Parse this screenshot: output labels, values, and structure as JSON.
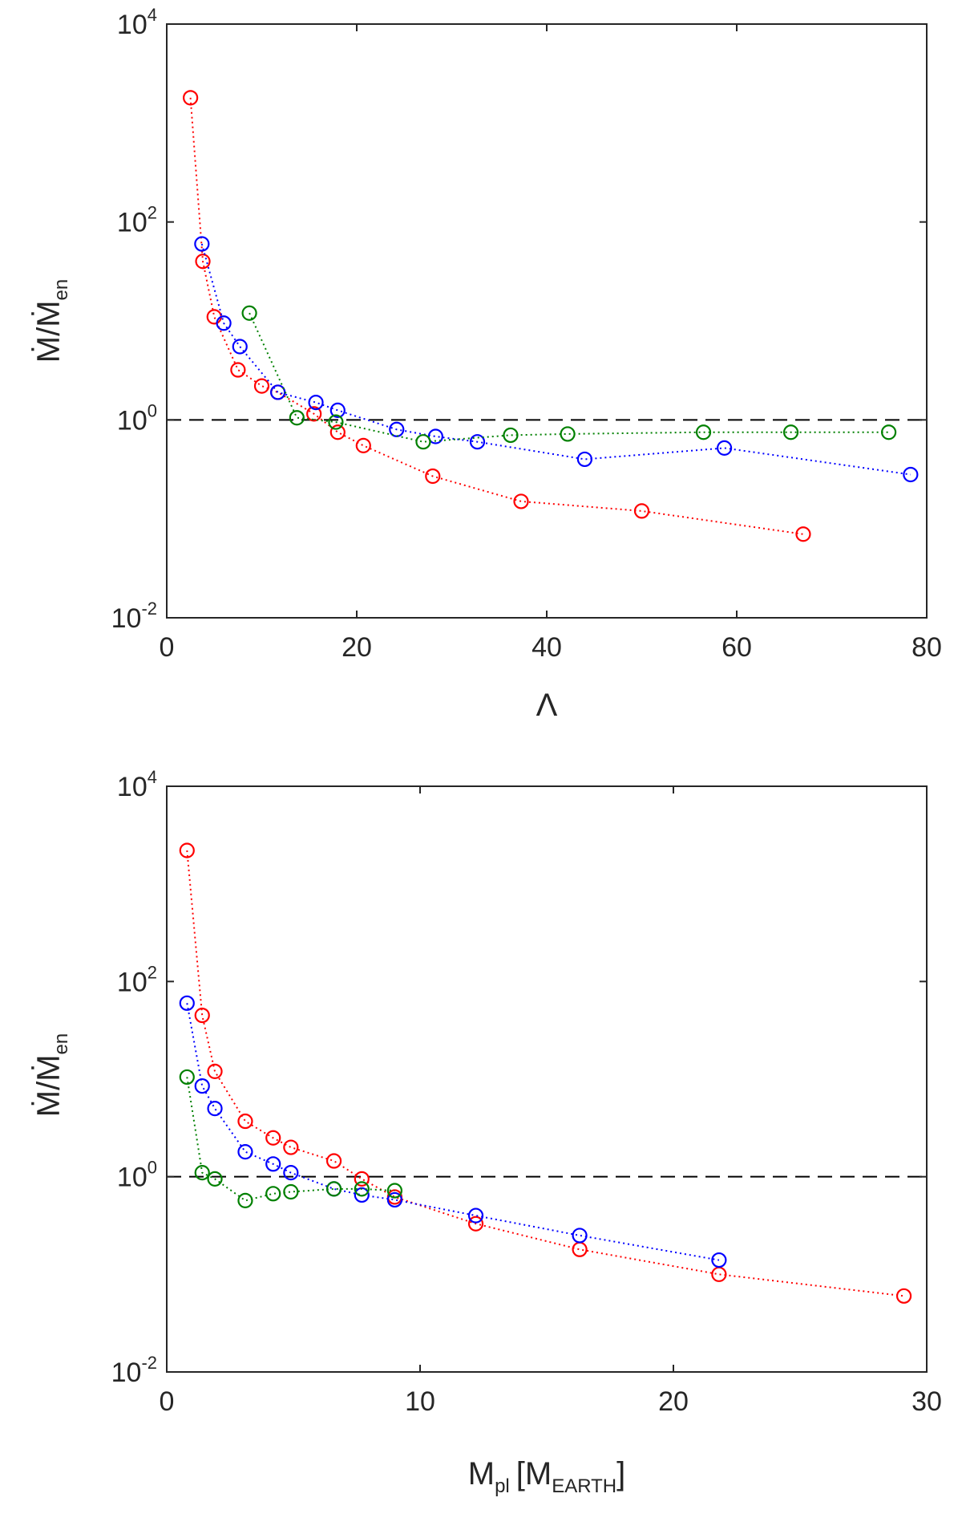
{
  "chart_data": [
    {
      "type": "scatter",
      "xlabel": "Λ",
      "ylabel": "Ṁ/Ṁen",
      "ylabel_main": "Ṁ/Ṁ",
      "ylabel_sub": "en",
      "xlim": [
        0,
        80
      ],
      "ylim": [
        0.01,
        10000
      ],
      "yscale": "log",
      "grid": false,
      "legend": "none",
      "xticks": [
        0,
        20,
        40,
        60,
        80
      ],
      "xtick_labels": [
        "0",
        "20",
        "40",
        "60",
        "80"
      ],
      "yticks": [
        0.01,
        1,
        100,
        10000
      ],
      "ytick_labels": [
        {
          "base": "10",
          "exp": "-2"
        },
        {
          "base": "10",
          "exp": "0"
        },
        {
          "base": "10",
          "exp": "2"
        },
        {
          "base": "10",
          "exp": "4"
        }
      ],
      "reference_line": {
        "y": 1,
        "style": "dashed"
      },
      "series": [
        {
          "name": "red",
          "color": "#ff0000",
          "x": [
            2.5,
            3.8,
            5.0,
            7.5,
            10.0,
            11.7,
            15.5,
            18.0,
            20.7,
            28.0,
            37.3,
            50.0,
            67.0
          ],
          "y": [
            1800,
            40,
            11,
            3.2,
            2.2,
            1.9,
            1.15,
            0.75,
            0.55,
            0.27,
            0.15,
            0.12,
            0.07
          ]
        },
        {
          "name": "blue",
          "color": "#0000ff",
          "x": [
            3.7,
            6.0,
            7.7,
            11.7,
            15.7,
            18.0,
            24.2,
            28.3,
            32.7,
            44.0,
            58.7,
            78.3
          ],
          "y": [
            60,
            9.5,
            5.5,
            1.9,
            1.5,
            1.25,
            0.8,
            0.68,
            0.6,
            0.4,
            0.52,
            0.28
          ]
        },
        {
          "name": "green",
          "color": "#008000",
          "x": [
            8.7,
            13.7,
            17.8,
            27.0,
            36.2,
            42.2,
            56.5,
            65.7,
            76.0
          ],
          "y": [
            12,
            1.05,
            0.95,
            0.6,
            0.7,
            0.72,
            0.75,
            0.75,
            0.75
          ]
        }
      ]
    },
    {
      "type": "scatter",
      "xlabel": "Mpl [MEARTH]",
      "xlabel_main": "M",
      "xlabel_sub": "pl",
      "xlabel_mid": "[M",
      "xlabel_sub2": "EARTH",
      "xlabel_end": "]",
      "ylabel": "Ṁ/Ṁen",
      "ylabel_main": "Ṁ/Ṁ",
      "ylabel_sub": "en",
      "xlim": [
        0,
        30
      ],
      "ylim": [
        0.01,
        10000
      ],
      "yscale": "log",
      "grid": false,
      "legend": "none",
      "xticks": [
        0,
        10,
        20,
        30
      ],
      "xtick_labels": [
        "0",
        "10",
        "20",
        "30"
      ],
      "yticks": [
        0.01,
        1,
        100,
        10000
      ],
      "ytick_labels": [
        {
          "base": "10",
          "exp": "-2"
        },
        {
          "base": "10",
          "exp": "0"
        },
        {
          "base": "10",
          "exp": "2"
        },
        {
          "base": "10",
          "exp": "4"
        }
      ],
      "reference_line": {
        "y": 1,
        "style": "dashed"
      },
      "series": [
        {
          "name": "red",
          "color": "#ff0000",
          "x": [
            0.8,
            1.4,
            1.9,
            3.1,
            4.2,
            4.9,
            6.6,
            7.7,
            9.0,
            12.2,
            16.3,
            21.8,
            29.1
          ],
          "y": [
            2200,
            45,
            12,
            3.7,
            2.5,
            2.0,
            1.45,
            0.95,
            0.62,
            0.33,
            0.18,
            0.1,
            0.06
          ]
        },
        {
          "name": "blue",
          "color": "#0000ff",
          "x": [
            0.8,
            1.4,
            1.9,
            3.1,
            4.2,
            4.9,
            6.6,
            7.7,
            9.0,
            12.2,
            16.3,
            21.8
          ],
          "y": [
            60,
            8.5,
            5.0,
            1.8,
            1.35,
            1.1,
            0.75,
            0.65,
            0.58,
            0.4,
            0.25,
            0.14
          ]
        },
        {
          "name": "green",
          "color": "#008000",
          "x": [
            0.8,
            1.4,
            1.9,
            3.1,
            4.2,
            4.9,
            6.6,
            7.7,
            9.0
          ],
          "y": [
            10.5,
            1.1,
            0.95,
            0.57,
            0.67,
            0.7,
            0.75,
            0.75,
            0.72
          ]
        }
      ]
    }
  ]
}
